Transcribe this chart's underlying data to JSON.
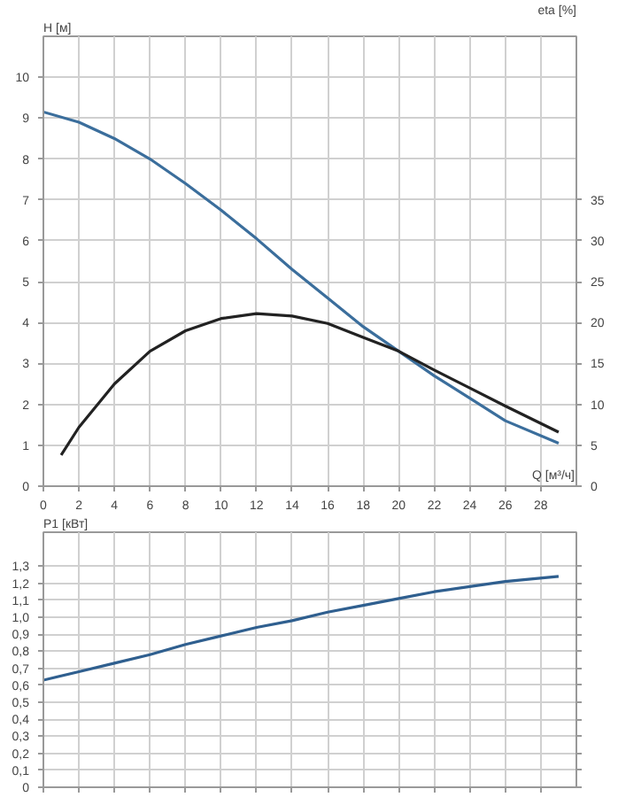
{
  "chart_data": [
    {
      "type": "line",
      "xlabel": "Q [м³/ч]",
      "ylabel": "H [м]",
      "y2label": "eta [%]",
      "xlim": [
        0,
        30
      ],
      "xticks": [
        0,
        2,
        4,
        6,
        8,
        10,
        12,
        14,
        16,
        18,
        20,
        22,
        24,
        26,
        28
      ],
      "ylim": [
        0,
        11
      ],
      "yticks": [
        0,
        1,
        2,
        3,
        4,
        5,
        6,
        7,
        8,
        9,
        10
      ],
      "y2lim": [
        0,
        55
      ],
      "y2ticks": [
        0,
        5,
        10,
        15,
        20,
        25,
        30,
        35
      ],
      "grid": true,
      "series": [
        {
          "color": "#3b6e9c",
          "x": [
            0,
            2,
            4,
            6,
            8,
            10,
            12,
            14,
            16,
            18,
            20,
            22,
            24,
            26,
            29
          ],
          "values": [
            9.15,
            8.9,
            8.5,
            8.0,
            7.4,
            6.75,
            6.05,
            5.3,
            4.6,
            3.9,
            3.3,
            2.7,
            2.15,
            1.6,
            1.05
          ]
        },
        {
          "color": "#222222",
          "axis": "y2",
          "x": [
            1,
            2,
            4,
            6,
            8,
            10,
            12,
            14,
            16,
            18,
            20,
            22,
            24,
            26,
            29
          ],
          "values": [
            3.8,
            7.2,
            12.5,
            16.5,
            19,
            20.5,
            21.1,
            20.8,
            19.9,
            18.2,
            16.5,
            14.2,
            12,
            9.8,
            6.6
          ]
        }
      ]
    },
    {
      "type": "line",
      "ylabel": "P1 [кВт]",
      "xlim": [
        0,
        30
      ],
      "xticks": [
        0,
        2,
        4,
        6,
        8,
        10,
        12,
        14,
        16,
        18,
        20,
        22,
        24,
        26,
        28
      ],
      "ylim": [
        0,
        1.5
      ],
      "yticks": [
        0,
        {
          "value": 0.1,
          "label": "0,1"
        },
        {
          "value": 0.2,
          "label": "0,2"
        },
        {
          "value": 0.3,
          "label": "0,3"
        },
        {
          "value": 0.4,
          "label": "0,4"
        },
        {
          "value": 0.5,
          "label": "0,5"
        },
        {
          "value": 0.6,
          "label": "0,6"
        },
        {
          "value": 0.7,
          "label": "0,7"
        },
        {
          "value": 0.8,
          "label": "0,8"
        },
        {
          "value": 0.9,
          "label": "0,9"
        },
        {
          "value": 1.0,
          "label": "1,0"
        },
        {
          "value": 1.1,
          "label": "1,1"
        },
        {
          "value": 1.2,
          "label": "1,2"
        },
        {
          "value": 1.3,
          "label": "1,3"
        }
      ],
      "grid": true,
      "tick_labels": "y",
      "series": [
        {
          "color": "#2f5f8f",
          "x": [
            0,
            2,
            4,
            6,
            8,
            10,
            12,
            14,
            16,
            18,
            20,
            22,
            24,
            26,
            29
          ],
          "values": [
            0.63,
            0.68,
            0.73,
            0.78,
            0.84,
            0.89,
            0.94,
            0.98,
            1.03,
            1.07,
            1.11,
            1.15,
            1.18,
            1.21,
            1.24
          ]
        }
      ]
    }
  ]
}
